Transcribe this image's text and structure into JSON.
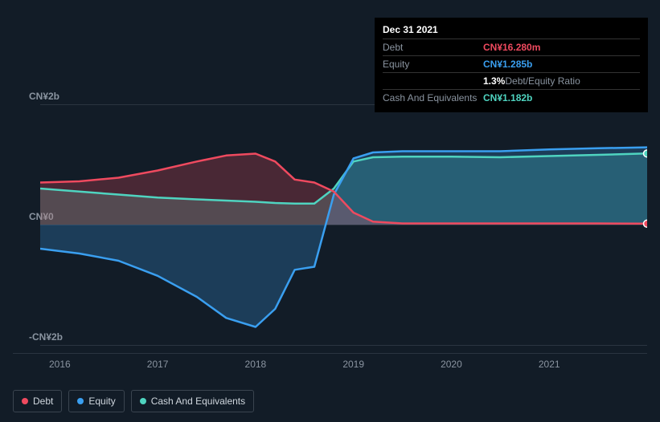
{
  "tooltip": {
    "date": "Dec 31 2021",
    "rows": [
      {
        "label": "Debt",
        "value": "CN¥16.280m",
        "color": "#ef4a5f",
        "sub": ""
      },
      {
        "label": "Equity",
        "value": "CN¥1.285b",
        "color": "#3a9ff0",
        "sub": ""
      },
      {
        "label": "",
        "value": "1.3%",
        "color": "#ffffff",
        "sub": "Debt/Equity Ratio"
      },
      {
        "label": "Cash And Equivalents",
        "value": "CN¥1.182b",
        "color": "#4fd4c0",
        "sub": ""
      }
    ]
  },
  "chart": {
    "type": "area",
    "background_color": "#121c27",
    "grid_color": "#2a3440",
    "y_axis": {
      "ticks": [
        {
          "label": "CN¥2b",
          "value": 2
        },
        {
          "label": "CN¥0",
          "value": 0
        },
        {
          "label": "-CN¥2b",
          "value": -2
        }
      ],
      "min": -2,
      "max": 2,
      "fontsize": 12,
      "color": "#8a94a0"
    },
    "x_axis": {
      "ticks": [
        "2016",
        "2017",
        "2018",
        "2019",
        "2020",
        "2021"
      ],
      "min": 2015.8,
      "max": 2022.0,
      "fontsize": 12,
      "color": "#8a94a0"
    },
    "series": {
      "debt": {
        "label": "Debt",
        "color": "#ef4a5f",
        "fill_opacity": 0.25,
        "stroke_width": 2.5,
        "data": [
          [
            2015.8,
            0.7
          ],
          [
            2016.2,
            0.72
          ],
          [
            2016.6,
            0.78
          ],
          [
            2017.0,
            0.9
          ],
          [
            2017.4,
            1.05
          ],
          [
            2017.7,
            1.15
          ],
          [
            2018.0,
            1.18
          ],
          [
            2018.2,
            1.05
          ],
          [
            2018.4,
            0.75
          ],
          [
            2018.6,
            0.7
          ],
          [
            2018.8,
            0.55
          ],
          [
            2019.0,
            0.2
          ],
          [
            2019.2,
            0.05
          ],
          [
            2019.5,
            0.02
          ],
          [
            2020.0,
            0.02
          ],
          [
            2020.5,
            0.02
          ],
          [
            2021.0,
            0.02
          ],
          [
            2021.5,
            0.02
          ],
          [
            2022.0,
            0.016
          ]
        ]
      },
      "equity": {
        "label": "Equity",
        "color": "#3a9ff0",
        "fill_opacity": 0.25,
        "stroke_width": 2.5,
        "data": [
          [
            2015.8,
            -0.4
          ],
          [
            2016.2,
            -0.48
          ],
          [
            2016.6,
            -0.6
          ],
          [
            2017.0,
            -0.85
          ],
          [
            2017.4,
            -1.2
          ],
          [
            2017.7,
            -1.55
          ],
          [
            2018.0,
            -1.7
          ],
          [
            2018.2,
            -1.4
          ],
          [
            2018.4,
            -0.75
          ],
          [
            2018.6,
            -0.7
          ],
          [
            2018.8,
            0.5
          ],
          [
            2019.0,
            1.1
          ],
          [
            2019.2,
            1.2
          ],
          [
            2019.5,
            1.22
          ],
          [
            2020.0,
            1.22
          ],
          [
            2020.5,
            1.22
          ],
          [
            2021.0,
            1.25
          ],
          [
            2021.5,
            1.27
          ],
          [
            2022.0,
            1.285
          ]
        ]
      },
      "cash": {
        "label": "Cash And Equivalents",
        "color": "#4fd4c0",
        "fill_opacity": 0.25,
        "stroke_width": 2.5,
        "data": [
          [
            2015.8,
            0.6
          ],
          [
            2016.2,
            0.55
          ],
          [
            2016.6,
            0.5
          ],
          [
            2017.0,
            0.45
          ],
          [
            2017.4,
            0.42
          ],
          [
            2017.7,
            0.4
          ],
          [
            2018.0,
            0.38
          ],
          [
            2018.2,
            0.36
          ],
          [
            2018.4,
            0.35
          ],
          [
            2018.6,
            0.35
          ],
          [
            2018.8,
            0.6
          ],
          [
            2019.0,
            1.05
          ],
          [
            2019.2,
            1.12
          ],
          [
            2019.5,
            1.13
          ],
          [
            2020.0,
            1.13
          ],
          [
            2020.5,
            1.12
          ],
          [
            2021.0,
            1.14
          ],
          [
            2021.5,
            1.16
          ],
          [
            2022.0,
            1.182
          ]
        ]
      }
    },
    "end_markers": [
      {
        "series": "cash",
        "color": "#4fd4c0"
      },
      {
        "series": "debt",
        "color": "#ef4a5f"
      }
    ]
  },
  "legend": {
    "items": [
      {
        "key": "debt",
        "label": "Debt",
        "color": "#ef4a5f"
      },
      {
        "key": "equity",
        "label": "Equity",
        "color": "#3a9ff0"
      },
      {
        "key": "cash",
        "label": "Cash And Equivalents",
        "color": "#4fd4c0"
      }
    ]
  }
}
